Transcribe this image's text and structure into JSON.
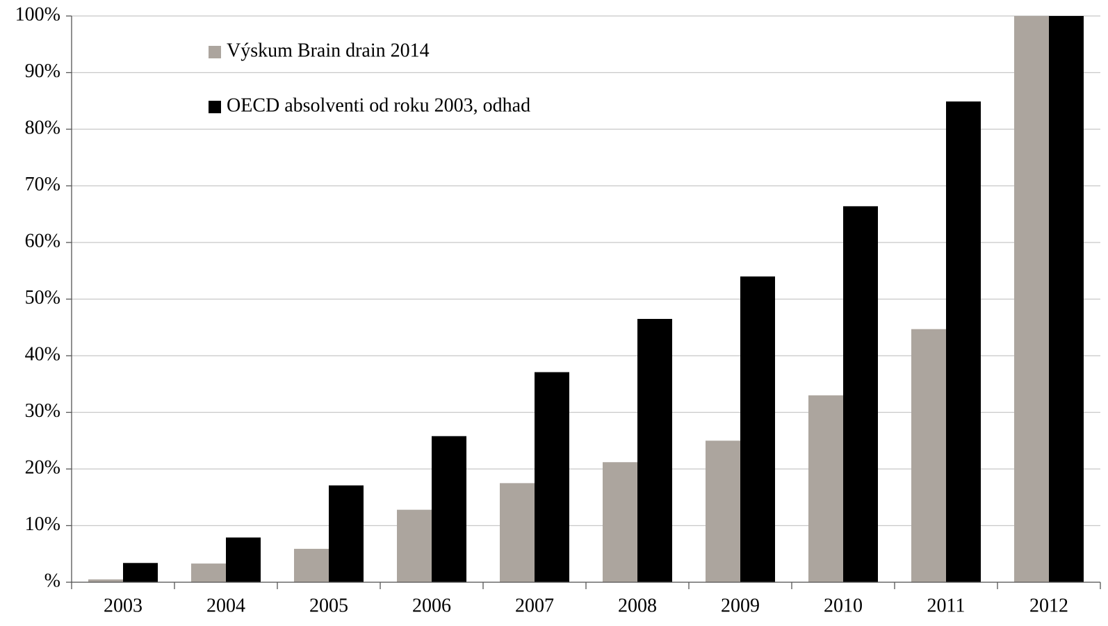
{
  "chart_data": {
    "type": "bar",
    "categories": [
      "2003",
      "2004",
      "2005",
      "2006",
      "2007",
      "2008",
      "2009",
      "2010",
      "2011",
      "2012"
    ],
    "series": [
      {
        "name": "Výskum Brain drain 2014",
        "color": "#aca59e",
        "values": [
          0.5,
          3.3,
          5.9,
          12.8,
          17.5,
          21.2,
          25.0,
          33.0,
          44.7,
          100
        ]
      },
      {
        "name": "OECD absolventi od roku 2003, odhad",
        "color": "#000000",
        "values": [
          3.4,
          7.9,
          17.1,
          25.8,
          37.1,
          46.5,
          54.0,
          66.4,
          84.9,
          100
        ]
      }
    ],
    "ylim": [
      0,
      100
    ],
    "yticks": [
      {
        "value": 0,
        "label": "%"
      },
      {
        "value": 10,
        "label": "10%"
      },
      {
        "value": 20,
        "label": "20%"
      },
      {
        "value": 30,
        "label": "30%"
      },
      {
        "value": 40,
        "label": "40%"
      },
      {
        "value": 50,
        "label": "50%"
      },
      {
        "value": 60,
        "label": "60%"
      },
      {
        "value": 70,
        "label": "70%"
      },
      {
        "value": 80,
        "label": "80%"
      },
      {
        "value": 90,
        "label": "90%"
      },
      {
        "value": 100,
        "label": "100%"
      }
    ],
    "grid": true,
    "legend": "upper left"
  }
}
